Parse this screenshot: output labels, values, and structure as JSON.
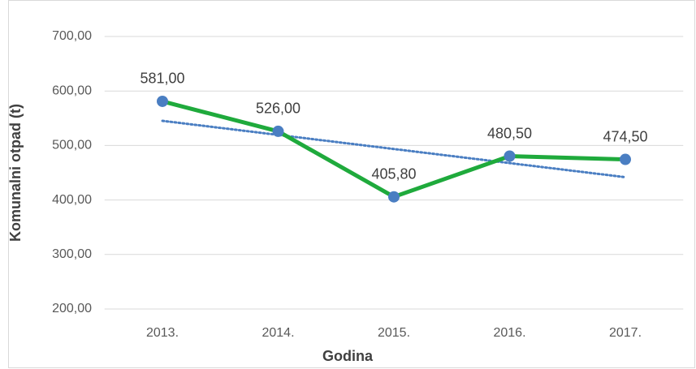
{
  "chart_data": {
    "type": "line",
    "x_label": "Godina",
    "y_label": "Komunalni otpad (t)",
    "categories": [
      "2013.",
      "2014.",
      "2015.",
      "2016.",
      "2017."
    ],
    "series": [
      {
        "name": "Komunalni otpad (t)",
        "color": "#1faa3c",
        "marker_color": "#4a7ec2",
        "values": [
          581,
          526,
          405.8,
          480.5,
          474.5
        ],
        "value_labels": [
          "581,00",
          "526,00",
          "405,80",
          "480,50",
          "474,50"
        ]
      }
    ],
    "trendline": {
      "type": "linear",
      "color": "#4a7ec2"
    },
    "ylim": [
      200,
      700
    ],
    "yticks": [
      {
        "value": 200,
        "label": "200,00"
      },
      {
        "value": 300,
        "label": "300,00"
      },
      {
        "value": 400,
        "label": "400,00"
      },
      {
        "value": 500,
        "label": "500,00"
      },
      {
        "value": 600,
        "label": "600,00"
      },
      {
        "value": 700,
        "label": "700,00"
      }
    ],
    "grid": true
  }
}
